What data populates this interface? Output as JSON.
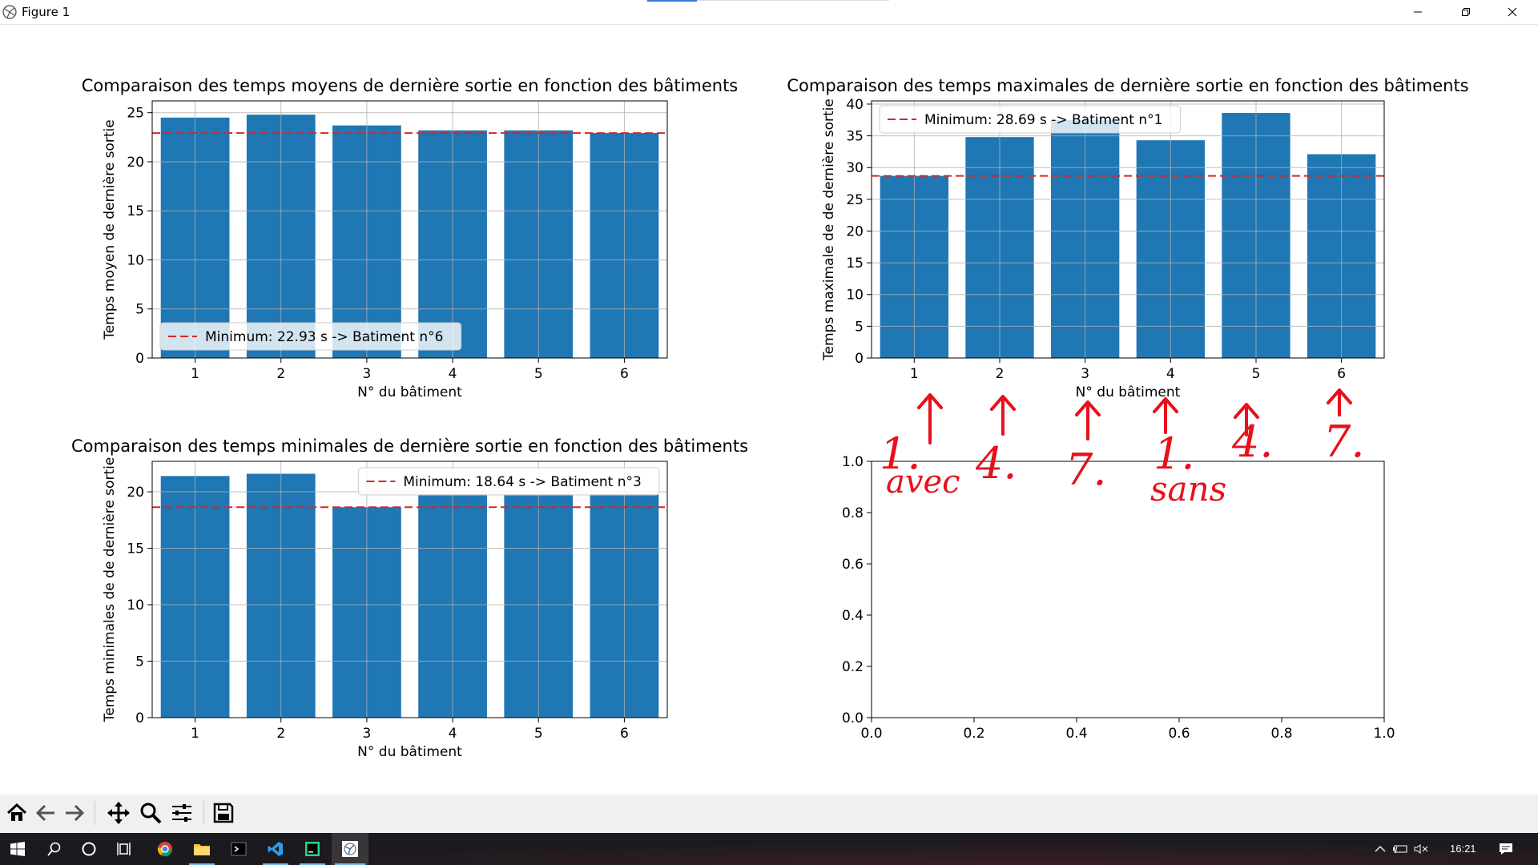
{
  "window": {
    "title": "Figure 1"
  },
  "colors": {
    "bar": "#1f77b4",
    "minline": "#d62728",
    "grid": "#b0b0b0",
    "ink": "#e8101c"
  },
  "figure": {
    "plots": [
      {
        "title": "Comparaison des temps moyens de dernière sortie en fonction des bâtiments",
        "xlabel": "N° du bâtiment",
        "ylabel": "Temps moyen de dernière sortie",
        "legend": "Minimum: 22.93 s -> Batiment n°6"
      },
      {
        "title": "Comparaison des temps maximales de dernière sortie en fonction des bâtiments",
        "xlabel": "N° du bâtiment",
        "ylabel": "Temps maximale de de dernière sortie",
        "legend": "Minimum: 28.69 s -> Batiment n°1"
      },
      {
        "title": "Comparaison des temps minimales de dernière sortie en fonction des bâtiments",
        "xlabel": "N° du bâtiment",
        "ylabel": "Temps minimales de de dernière sortie",
        "legend": "Minimum: 18.64 s -> Batiment n°3"
      }
    ]
  },
  "chart_data": [
    {
      "type": "bar",
      "title": "Comparaison des temps moyens de dernière sortie en fonction des bâtiments",
      "xlabel": "N° du bâtiment",
      "ylabel": "Temps moyen de dernière sortie",
      "categories": [
        "1",
        "2",
        "3",
        "4",
        "5",
        "6"
      ],
      "values": [
        24.5,
        24.8,
        23.7,
        23.2,
        23.2,
        22.93
      ],
      "ylim": [
        0,
        26.2
      ],
      "yticks": [
        0,
        5,
        10,
        15,
        20,
        25
      ],
      "hline": 22.93,
      "legend_location": "lower-left",
      "grid": true
    },
    {
      "type": "bar",
      "title": "Comparaison des temps maximales de dernière sortie en fonction des bâtiments",
      "xlabel": "N° du bâtiment",
      "ylabel": "Temps maximale de de dernière sortie",
      "categories": [
        "1",
        "2",
        "3",
        "4",
        "5",
        "6"
      ],
      "values": [
        28.69,
        34.8,
        37.5,
        34.3,
        38.6,
        32.1
      ],
      "ylim": [
        0,
        40.5
      ],
      "yticks": [
        0,
        5,
        10,
        15,
        20,
        25,
        30,
        35,
        40
      ],
      "hline": 28.69,
      "legend_location": "upper-left",
      "grid": true
    },
    {
      "type": "bar",
      "title": "Comparaison des temps minimales de dernière sortie en fonction des bâtiments",
      "xlabel": "N° du bâtiment",
      "ylabel": "Temps minimales de de dernière sortie",
      "categories": [
        "1",
        "2",
        "3",
        "4",
        "5",
        "6"
      ],
      "values": [
        21.4,
        21.6,
        18.64,
        19.8,
        19.8,
        19.8
      ],
      "ylim": [
        0,
        22.7
      ],
      "yticks": [
        0,
        5,
        10,
        15,
        20
      ],
      "hline": 18.64,
      "legend_location": "upper-right",
      "grid": true
    },
    {
      "type": "scatter",
      "xlim": [
        0,
        1
      ],
      "ylim": [
        0,
        1
      ],
      "xticks": [
        "0.0",
        "0.2",
        "0.4",
        "0.6",
        "0.8",
        "1.0"
      ],
      "yticks": [
        "0.0",
        "0.2",
        "0.4",
        "0.6",
        "0.8",
        "1.0"
      ],
      "series": []
    }
  ],
  "annotations": {
    "numbers": [
      "1.",
      "4.",
      "7.",
      "1.",
      "4.",
      "7."
    ],
    "words": [
      "avec",
      "sans"
    ]
  },
  "toolbar": {
    "buttons": [
      "home-icon",
      "back-icon",
      "forward-icon",
      "pan-icon",
      "zoom-icon",
      "configure-icon",
      "save-icon"
    ]
  },
  "taskbar": {
    "time": "16:21",
    "apps": [
      "start-icon",
      "search-icon",
      "cortana-icon",
      "taskview-icon",
      "chrome-icon",
      "explorer-icon",
      "terminal-icon",
      "vscode-icon",
      "pycharm-icon",
      "python-figure-icon"
    ]
  }
}
